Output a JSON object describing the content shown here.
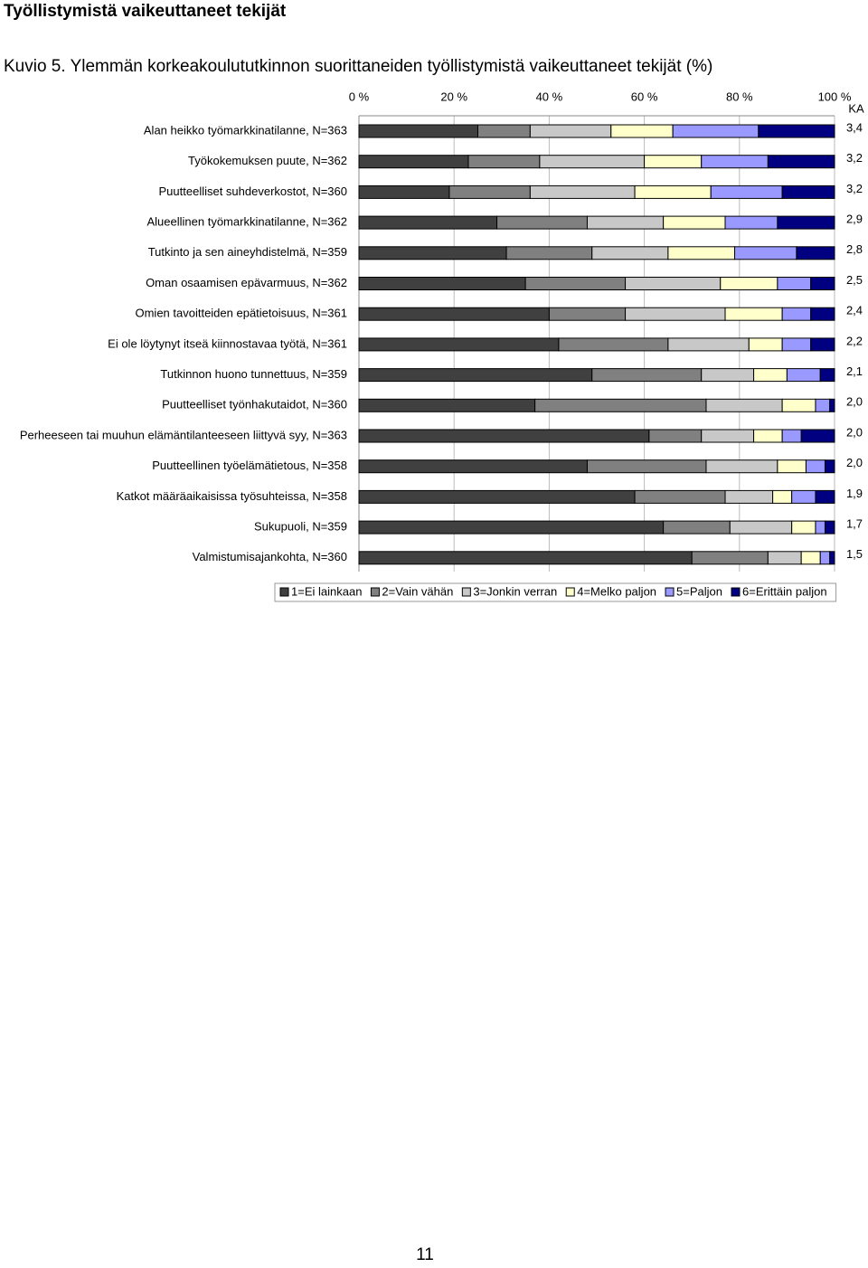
{
  "header": {
    "title": "Työllistymistä vaikeuttaneet tekijät"
  },
  "caption": "Kuvio 5. Ylemmän korkeakoulututkinnon suorittaneiden työllistymistä vaikeuttaneet tekijät (%)",
  "page_number": "11",
  "chart_data": {
    "type": "bar",
    "orientation": "horizontal",
    "stacked": true,
    "categories": [
      "Alan heikko työmarkkinatilanne, N=363",
      "Työkokemuksen puute, N=362",
      "Puutteelliset suhdeverkostot, N=360",
      "Alueellinen työmarkkinatilanne, N=362",
      "Tutkinto ja sen aineyhdistelmä, N=359",
      "Oman osaamisen epävarmuus, N=362",
      "Omien tavoitteiden epätietoisuus, N=361",
      "Ei ole löytynyt itseä kiinnostavaa työtä, N=361",
      "Tutkinnon huono tunnettuus, N=359",
      "Puutteelliset työnhakutaidot, N=360",
      "Perheeseen tai muuhun elämäntilanteeseen liittyvä syy, N=363",
      "Puutteellinen työelämätietous, N=358",
      "Katkot määräaikaisissa työsuhteissa, N=358",
      "Sukupuoli, N=359",
      "Valmistumisajankohta, N=360"
    ],
    "series": [
      {
        "name": "1=Ei lainkaan",
        "color": "#404040",
        "values": [
          25,
          23,
          19,
          29,
          31,
          35,
          40,
          42,
          49,
          37,
          61,
          48,
          58,
          64,
          70
        ]
      },
      {
        "name": "2=Vain vähän",
        "color": "#808080",
        "values": [
          11,
          15,
          17,
          19,
          18,
          21,
          16,
          23,
          23,
          36,
          11,
          25,
          19,
          14,
          16
        ]
      },
      {
        "name": "3=Jonkin verran",
        "color": "#c8c8c8",
        "values": [
          17,
          22,
          22,
          16,
          16,
          20,
          21,
          17,
          11,
          16,
          11,
          15,
          10,
          13,
          7
        ]
      },
      {
        "name": "4=Melko paljon",
        "color": "#ffffcc",
        "values": [
          13,
          12,
          16,
          13,
          14,
          12,
          12,
          7,
          7,
          7,
          6,
          6,
          4,
          5,
          4
        ]
      },
      {
        "name": "5=Paljon",
        "color": "#9999ff",
        "values": [
          18,
          14,
          15,
          11,
          13,
          7,
          6,
          6,
          7,
          3,
          4,
          4,
          5,
          2,
          2
        ]
      },
      {
        "name": "6=Erittäin paljon",
        "color": "#000080",
        "values": [
          16,
          14,
          11,
          12,
          8,
          5,
          5,
          5,
          3,
          1,
          7,
          2,
          4,
          2,
          1
        ]
      }
    ],
    "xlim": [
      0,
      100
    ],
    "xticks": [
      {
        "value": 0,
        "label": "0 %"
      },
      {
        "value": 20,
        "label": "20 %"
      },
      {
        "value": 40,
        "label": "40 %"
      },
      {
        "value": 60,
        "label": "60 %"
      },
      {
        "value": 80,
        "label": "80 %"
      },
      {
        "value": 100,
        "label": "100 %"
      }
    ],
    "grid": true,
    "ka_label": "KA",
    "ka_values": [
      3.4,
      3.2,
      3.2,
      2.9,
      2.8,
      2.5,
      2.4,
      2.2,
      2.1,
      2.0,
      2.0,
      2.0,
      1.9,
      1.7,
      1.5
    ],
    "ka_value_labels": [
      "3,4",
      "3,2",
      "3,2",
      "2,9",
      "2,8",
      "2,5",
      "2,4",
      "2,2",
      "2,1",
      "2,0",
      "2,0",
      "2,0",
      "1,9",
      "1,7",
      "1,5"
    ],
    "legend": "bottom"
  }
}
